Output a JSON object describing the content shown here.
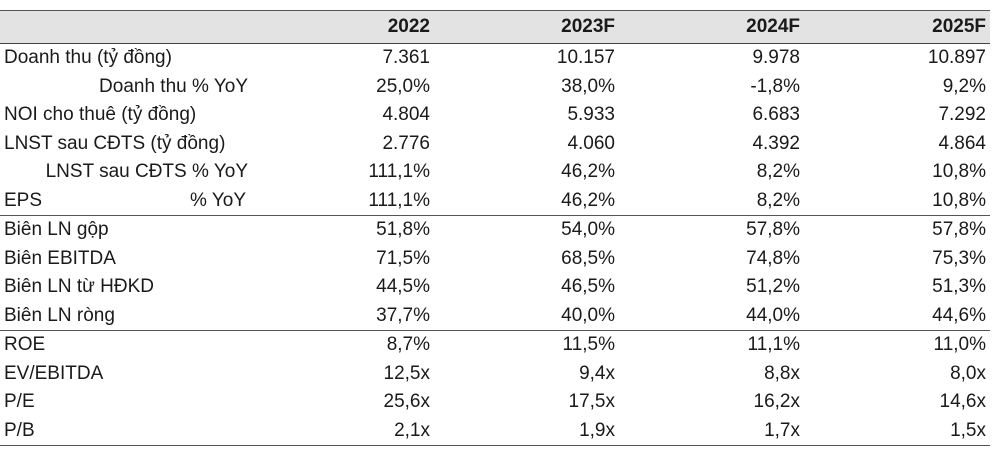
{
  "header": {
    "label": "",
    "years": [
      "2022",
      "2023F",
      "2024F",
      "2025F"
    ]
  },
  "rows": [
    {
      "label": "Doanh thu (tỷ đồng)",
      "values": [
        "7.361",
        "10.157",
        "9.978",
        "10.897"
      ]
    },
    {
      "label": "Doanh thu % YoY",
      "values": [
        "25,0%",
        "38,0%",
        "-1,8%",
        "9,2%"
      ]
    },
    {
      "label": "NOI cho thuê (tỷ đồng)",
      "values": [
        "4.804",
        "5.933",
        "6.683",
        "7.292"
      ]
    },
    {
      "label": "LNST sau CĐTS (tỷ đồng)",
      "values": [
        "2.776",
        "4.060",
        "4.392",
        "4.864"
      ]
    },
    {
      "label": "LNST sau CĐTS % YoY",
      "values": [
        "111,1%",
        "46,2%",
        "8,2%",
        "10,8%"
      ]
    },
    {
      "label": "EPS",
      "sublabel": "% YoY",
      "values": [
        "111,1%",
        "46,2%",
        "8,2%",
        "10,8%"
      ]
    },
    {
      "label": "Biên LN gộp",
      "values": [
        "51,8%",
        "54,0%",
        "57,8%",
        "57,8%"
      ]
    },
    {
      "label": "Biên EBITDA",
      "values": [
        "71,5%",
        "68,5%",
        "74,8%",
        "75,3%"
      ]
    },
    {
      "label": "Biên LN từ HĐKD",
      "values": [
        "44,5%",
        "46,5%",
        "51,2%",
        "51,3%"
      ]
    },
    {
      "label": "Biên LN ròng",
      "values": [
        "37,7%",
        "40,0%",
        "44,0%",
        "44,6%"
      ]
    },
    {
      "label": "ROE",
      "values": [
        "8,7%",
        "11,5%",
        "11,1%",
        "11,0%"
      ]
    },
    {
      "label": "EV/EBITDA",
      "values": [
        "12,5x",
        "9,4x",
        "8,8x",
        "8,0x"
      ]
    },
    {
      "label": "P/E",
      "values": [
        "25,6x",
        "17,5x",
        "16,2x",
        "14,6x"
      ]
    },
    {
      "label": "P/B",
      "values": [
        "2,1x",
        "1,9x",
        "1,7x",
        "1,5x"
      ]
    }
  ]
}
